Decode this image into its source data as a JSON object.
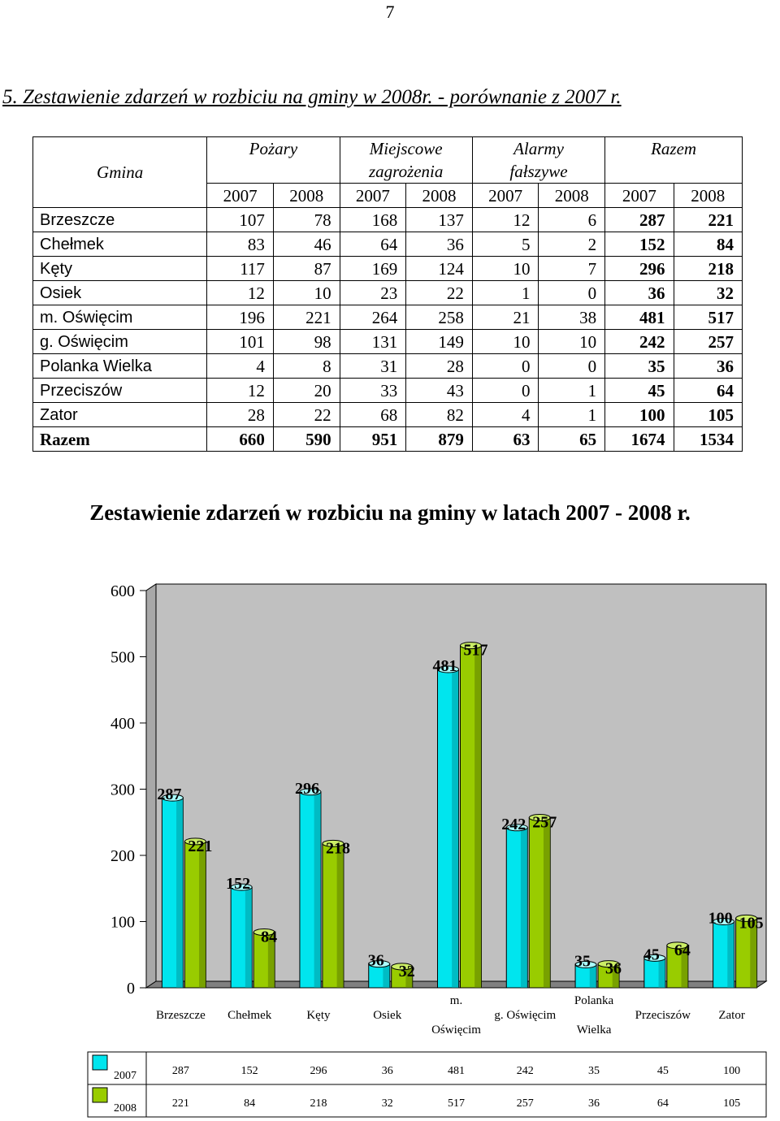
{
  "page_number": "7",
  "heading": "5.  Zestawienie zdarzeń w rozbiciu na gminy  w 2008r. - porównanie z 2007 r.",
  "table": {
    "gmina_header": "Gmina",
    "group_headers": [
      {
        "line1": "Pożary",
        "line2": ""
      },
      {
        "line1": "Miejscowe",
        "line2": "zagrożenia"
      },
      {
        "line1": "Alarmy",
        "line2": "fałszywe"
      },
      {
        "line1": "Razem",
        "line2": ""
      }
    ],
    "years": [
      "2007",
      "2008",
      "2007",
      "2008",
      "2007",
      "2008",
      "2007",
      "2008"
    ],
    "rows": [
      {
        "name": "Brzeszcze",
        "values": [
          "107",
          "78",
          "168",
          "137",
          "12",
          "6",
          "287",
          "221"
        ]
      },
      {
        "name": "Chełmek",
        "values": [
          "83",
          "46",
          "64",
          "36",
          "5",
          "2",
          "152",
          "84"
        ]
      },
      {
        "name": "Kęty",
        "values": [
          "117",
          "87",
          "169",
          "124",
          "10",
          "7",
          "296",
          "218"
        ]
      },
      {
        "name": "Osiek",
        "values": [
          "12",
          "10",
          "23",
          "22",
          "1",
          "0",
          "36",
          "32"
        ]
      },
      {
        "name": "m. Oświęcim",
        "values": [
          "196",
          "221",
          "264",
          "258",
          "21",
          "38",
          "481",
          "517"
        ]
      },
      {
        "name": "g. Oświęcim",
        "values": [
          "101",
          "98",
          "131",
          "149",
          "10",
          "10",
          "242",
          "257"
        ]
      },
      {
        "name": "Polanka Wielka",
        "values": [
          "4",
          "8",
          "31",
          "28",
          "0",
          "0",
          "35",
          "36"
        ]
      },
      {
        "name": "Przeciszów",
        "values": [
          "12",
          "20",
          "33",
          "43",
          "0",
          "1",
          "45",
          "64"
        ]
      },
      {
        "name": "Zator",
        "values": [
          "28",
          "22",
          "68",
          "82",
          "4",
          "1",
          "100",
          "105"
        ]
      }
    ],
    "total_row": {
      "name": "Razem",
      "values": [
        "660",
        "590",
        "951",
        "879",
        "63",
        "65",
        "1674",
        "1534"
      ]
    }
  },
  "chart_title": "Zestawienie zdarzeń w rozbiciu na gminy w latach 2007  - 2008 r.",
  "chart_data": {
    "type": "bar",
    "title": "Zestawienie zdarzeń w rozbiciu na gminy w latach 2007  - 2008 r.",
    "categories": [
      "Brzeszcze",
      "Chełmek",
      "Kęty",
      "Osiek",
      "m. Oświęcim",
      "g. Oświęcim",
      "Polanka Wielka",
      "Przeciszów",
      "Zator"
    ],
    "category_label_lines": [
      [
        "Brzeszcze"
      ],
      [
        "Chełmek"
      ],
      [
        "Kęty"
      ],
      [
        "Osiek"
      ],
      [
        "m.",
        "Oświęcim"
      ],
      [
        "g. Oświęcim"
      ],
      [
        "Polanka",
        "Wielka"
      ],
      [
        "Przeciszów"
      ],
      [
        "Zator"
      ]
    ],
    "series": [
      {
        "name": "2007",
        "color": "#00e5ee",
        "dark": "#009aa3",
        "values": [
          287,
          152,
          296,
          36,
          481,
          242,
          35,
          45,
          100
        ]
      },
      {
        "name": "2008",
        "color": "#99cc00",
        "dark": "#5c7d00",
        "values": [
          221,
          84,
          218,
          32,
          517,
          257,
          36,
          64,
          105
        ]
      }
    ],
    "ylim": [
      0,
      600
    ],
    "yticks": [
      0,
      100,
      200,
      300,
      400,
      500,
      600
    ],
    "grid": false,
    "legend": "data-table-below",
    "xlabel": "",
    "ylabel": ""
  }
}
